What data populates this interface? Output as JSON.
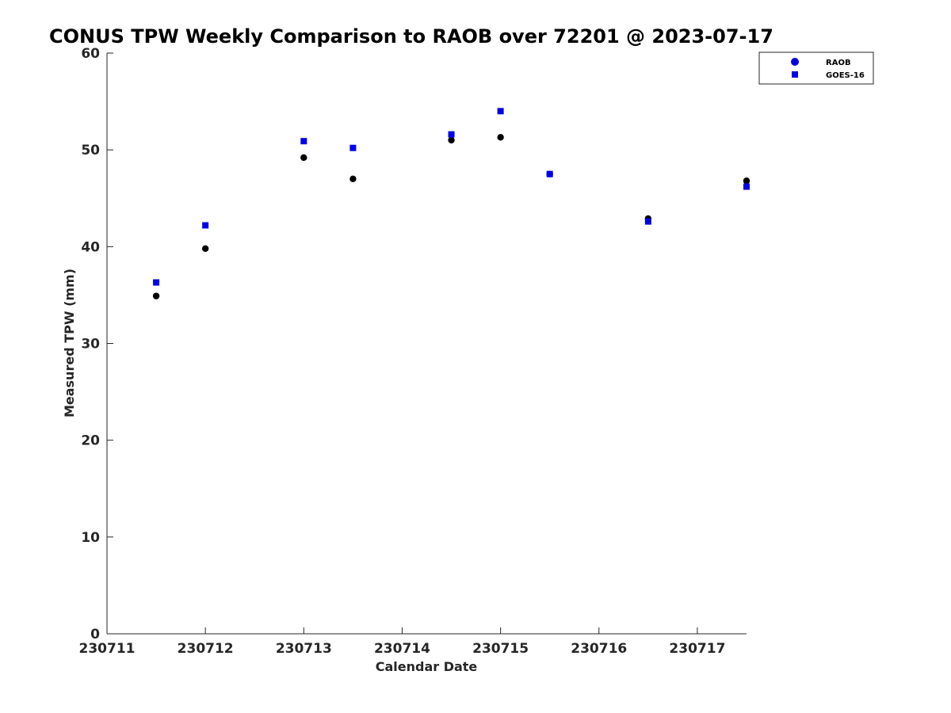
{
  "chart_data": {
    "type": "scatter",
    "title": "CONUS TPW Weekly Comparison to RAOB over 72201 @ 2023-07-17",
    "xlabel": "Calendar Date",
    "ylabel": "Measured TPW (mm)",
    "xlim": [
      "230711",
      "230717.5"
    ],
    "ylim": [
      0,
      60
    ],
    "xticks": [
      "230711",
      "230712",
      "230713",
      "230714",
      "230715",
      "230716",
      "230717"
    ],
    "yticks": [
      "0",
      "10",
      "20",
      "30",
      "40",
      "50",
      "60"
    ],
    "grid": false,
    "legend_position": "top-right",
    "series": [
      {
        "name": "RAOB",
        "marker": "circle",
        "color": "#000000",
        "x": [
          "230711.5",
          "230712",
          "230713",
          "230713.5",
          "230714.5",
          "230715",
          "230715.5",
          "230716.5",
          "230717.5"
        ],
        "y": [
          34.9,
          39.8,
          49.2,
          47.0,
          51.0,
          51.3,
          47.5,
          42.9,
          46.8
        ]
      },
      {
        "name": "GOES-16",
        "marker": "square",
        "color": "#0000e6",
        "x": [
          "230711.5",
          "230712",
          "230713",
          "230713.5",
          "230714.5",
          "230715",
          "230715.5",
          "230716.5",
          "230717.5"
        ],
        "y": [
          36.3,
          42.2,
          50.9,
          50.2,
          51.6,
          54.0,
          47.5,
          42.6,
          46.2
        ]
      }
    ]
  }
}
